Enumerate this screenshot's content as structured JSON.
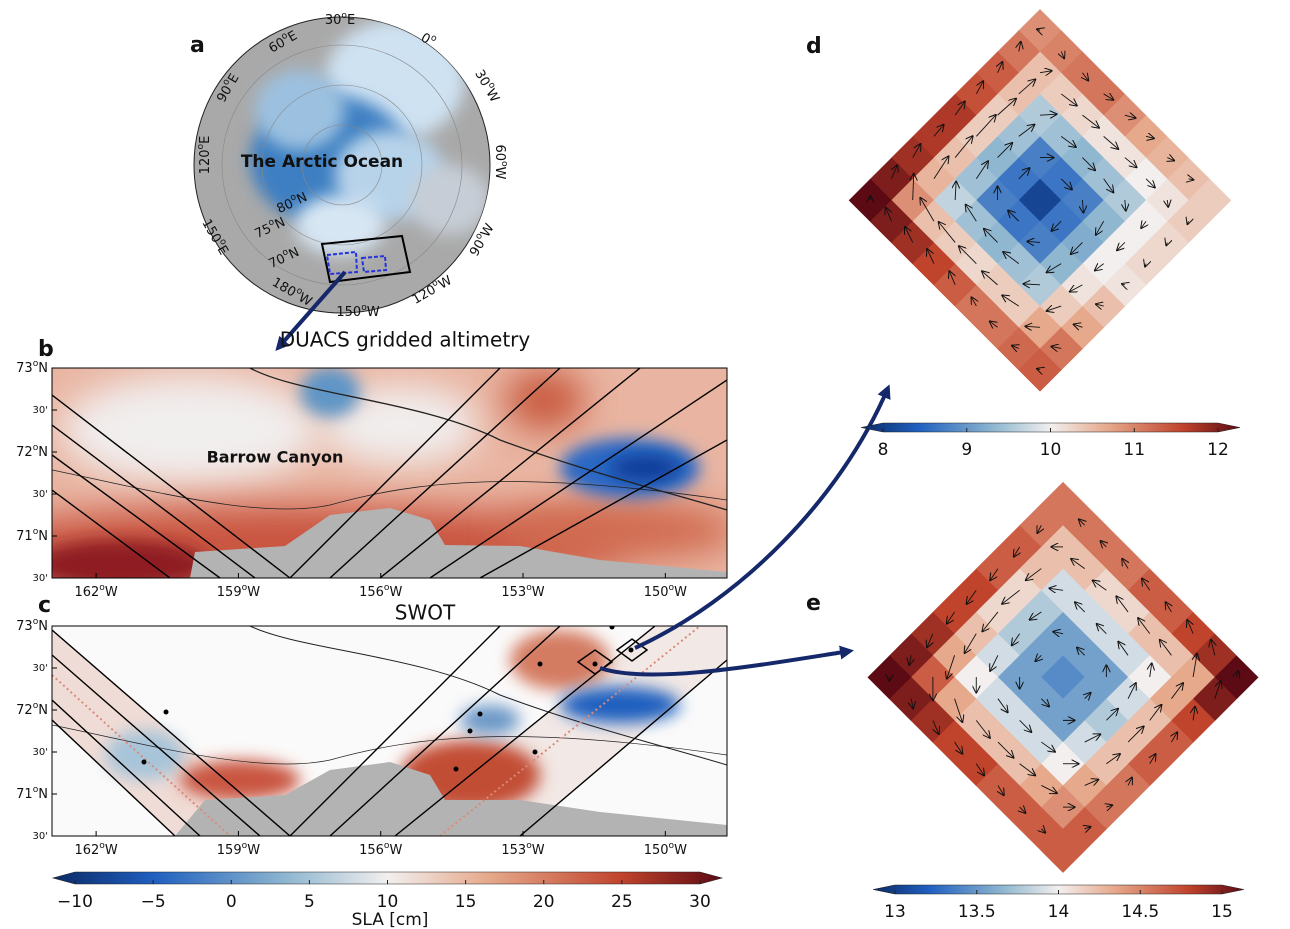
{
  "panel_a": {
    "label": "a",
    "ocean_label": "The Arctic Ocean",
    "lon_labels": [
      "30oE",
      "60oE",
      "0o",
      "90oE",
      "30oW",
      "120oE",
      "60oW",
      "150oE",
      "90oW",
      "180oW",
      "120oW",
      "150oW"
    ],
    "lat_labels": [
      "80oN",
      "75oN",
      "70oN"
    ]
  },
  "panel_b": {
    "label": "b",
    "title": "DUACS gridded altimetry",
    "annotation": "Barrow Canyon",
    "xlim": [
      -162.93,
      -148.7
    ],
    "ylim": [
      70.5,
      73.0
    ],
    "xticks": [
      {
        "value": -162,
        "label": "162oW"
      },
      {
        "value": -159,
        "label": "159oW"
      },
      {
        "value": -156,
        "label": "156oW"
      },
      {
        "value": -153,
        "label": "153oW"
      },
      {
        "value": -150,
        "label": "150oW"
      }
    ],
    "yticks": [
      {
        "value": 73,
        "label": "73oN"
      },
      {
        "value": 72.5,
        "label": "30'"
      },
      {
        "value": 72,
        "label": "72oN"
      },
      {
        "value": 71.5,
        "label": "30'"
      },
      {
        "value": 71,
        "label": "71oN"
      },
      {
        "value": 70.5,
        "label": "30'"
      }
    ]
  },
  "panel_c": {
    "label": "c",
    "title": "SWOT",
    "xlim": [
      -162.93,
      -148.7
    ],
    "ylim": [
      70.5,
      73.0
    ],
    "xticks": [
      {
        "value": -162,
        "label": "162oW"
      },
      {
        "value": -159,
        "label": "159oW"
      },
      {
        "value": -156,
        "label": "156oW"
      },
      {
        "value": -153,
        "label": "153oW"
      },
      {
        "value": -150,
        "label": "150oW"
      }
    ],
    "yticks": [
      {
        "value": 73,
        "label": "73oN"
      },
      {
        "value": 72.5,
        "label": "30'"
      },
      {
        "value": 72,
        "label": "72oN"
      },
      {
        "value": 71.5,
        "label": "30'"
      },
      {
        "value": 71,
        "label": "71oN"
      },
      {
        "value": 70.5,
        "label": "30'"
      }
    ]
  },
  "colorbar_sla": {
    "label": "SLA [cm]",
    "lim": [
      -10,
      30
    ],
    "ticks": [
      {
        "value": -10,
        "label": "−10"
      },
      {
        "value": -5,
        "label": "−5"
      },
      0,
      5,
      10,
      15,
      20,
      25,
      30
    ]
  },
  "panel_d": {
    "label": "d",
    "colorbar": {
      "lim": [
        8,
        12
      ],
      "ticks": [
        8,
        9,
        10,
        11,
        12
      ]
    },
    "grid": [
      [
        10.8,
        10.9,
        11,
        11,
        10.8,
        10.6,
        10.5,
        10.4,
        10.3
      ],
      [
        11,
        10.4,
        10.3,
        10.2,
        10.1,
        10.1,
        10,
        10.1,
        10.3
      ],
      [
        11.2,
        10.4,
        9.6,
        9.5,
        9.4,
        9.5,
        9.6,
        10,
        10.2
      ],
      [
        11.3,
        10.3,
        9.5,
        8.9,
        8.8,
        8.9,
        9.4,
        10,
        10.2
      ],
      [
        11.5,
        10.3,
        9.4,
        8.8,
        8.3,
        8.8,
        9.3,
        10,
        10.1
      ],
      [
        11.5,
        10.4,
        9.5,
        8.9,
        8.8,
        8.9,
        9.4,
        10.1,
        10.4
      ],
      [
        11.6,
        10.5,
        9.7,
        9.5,
        9.4,
        9.5,
        9.6,
        10.3,
        10.6
      ],
      [
        11.8,
        10.8,
        10.4,
        10.3,
        10.2,
        10.3,
        10.3,
        10.6,
        11
      ],
      [
        12,
        11.8,
        11.6,
        11.4,
        11.2,
        11,
        11,
        11.1,
        11.2
      ]
    ]
  },
  "panel_e": {
    "label": "e",
    "colorbar": {
      "lim": [
        13,
        15
      ],
      "ticks": [
        13,
        13.5,
        14,
        14.5,
        15
      ]
    },
    "grid": [
      [
        14.5,
        14.5,
        14.5,
        14.5,
        14.6,
        14.6,
        14.7,
        14.8,
        15
      ],
      [
        14.5,
        14.2,
        14.2,
        14.1,
        14.1,
        14.2,
        14.2,
        14.3,
        14.9
      ],
      [
        14.6,
        14.2,
        13.9,
        13.9,
        13.9,
        13.9,
        14,
        14.3,
        14.7
      ],
      [
        14.6,
        14.1,
        13.8,
        13.6,
        13.6,
        13.6,
        13.9,
        14.2,
        14.6
      ],
      [
        14.7,
        14.1,
        13.8,
        13.6,
        13.5,
        13.6,
        13.8,
        14.2,
        14.6
      ],
      [
        14.7,
        14.2,
        13.9,
        13.6,
        13.6,
        13.6,
        13.9,
        14.2,
        14.5
      ],
      [
        14.8,
        14.3,
        14,
        13.9,
        13.9,
        13.9,
        14,
        14.3,
        14.5
      ],
      [
        14.9,
        14.6,
        14.3,
        14.2,
        14.2,
        14.2,
        14.3,
        14.4,
        14.6
      ],
      [
        15,
        14.9,
        14.8,
        14.7,
        14.7,
        14.6,
        14.6,
        14.6,
        14.6
      ]
    ]
  }
}
